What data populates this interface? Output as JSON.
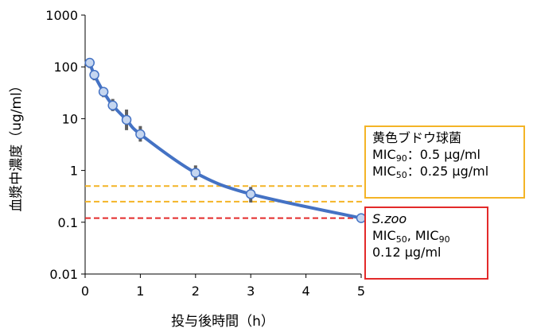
{
  "chart_data": {
    "type": "line",
    "xlabel": "投与後時間（h）",
    "ylabel": "血漿中濃度（ug/ml）",
    "xlim": [
      0,
      5
    ],
    "ylim": [
      0.01,
      1000
    ],
    "y_scale": "log",
    "x_ticks": [
      "0",
      "1",
      "2",
      "3",
      "4",
      "5"
    ],
    "y_ticks": [
      "0.01",
      "0.1",
      "1",
      "10",
      "100",
      "1000"
    ],
    "grid": false,
    "series": [
      {
        "color": "#4472c4",
        "marker_color": "#c5d6f0",
        "x": [
          0.083,
          0.167,
          0.333,
          0.5,
          0.75,
          1,
          2,
          3,
          5
        ],
        "y": [
          120,
          70,
          33,
          18,
          9.5,
          5,
          0.9,
          0.35,
          0.12
        ],
        "err_low": [
          95,
          55,
          26,
          14,
          6,
          3.6,
          0.65,
          0.24,
          0.11
        ],
        "err_high": [
          140,
          85,
          40,
          24,
          15,
          7.2,
          1.25,
          0.48,
          0.13
        ]
      }
    ],
    "reference_lines": [
      {
        "y": 0.5,
        "color": "#f4b426",
        "style": "dashed"
      },
      {
        "y": 0.25,
        "color": "#f4b426",
        "style": "dashed"
      },
      {
        "y": 0.12,
        "color": "#e32a2a",
        "style": "dashed"
      }
    ]
  },
  "annotations": {
    "saureus": {
      "title": "黄色ブドウ球菌",
      "mic90_prefix": "MIC",
      "mic90_sub": "90",
      "mic90_value": "：0.5 μg/ml",
      "mic50_prefix": "MIC",
      "mic50_sub": "50",
      "mic50_value": "：0.25 μg/ml",
      "border_color": "#f4b426"
    },
    "szoo": {
      "title": "S.zoo",
      "mic_a_prefix": "MIC",
      "mic_a_sub": "50",
      "mic_sep": ", ",
      "mic_b_prefix": "MIC",
      "mic_b_sub": "90",
      "value": "0.12 μg/ml",
      "border_color": "#e32a2a"
    }
  }
}
